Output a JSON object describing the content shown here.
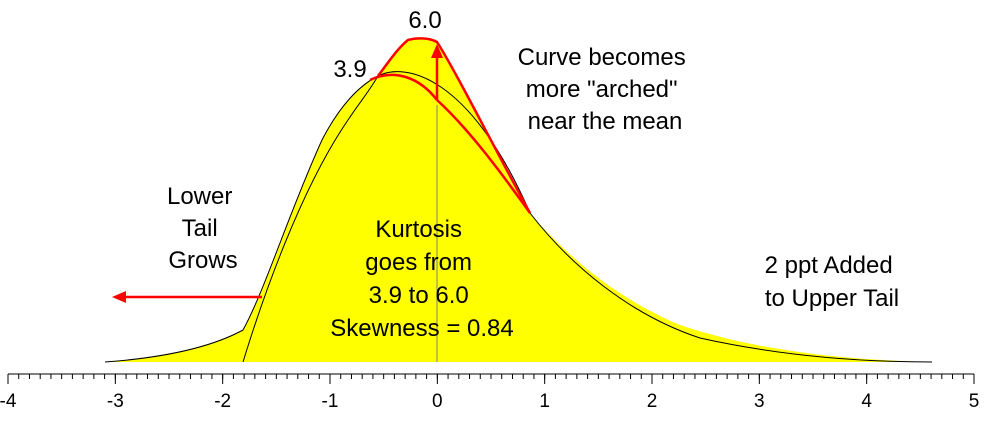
{
  "peak_labels": {
    "old": "3.9",
    "new": "6.0"
  },
  "annotations": {
    "arched": [
      "Curve becomes",
      "more \"arched\"",
      "near the mean"
    ],
    "lower_tail": [
      "Lower",
      "Tail",
      "Grows"
    ],
    "kurtosis": [
      "Kurtosis",
      "goes from",
      "3.9 to 6.0",
      "Skewness = 0.84"
    ],
    "upper_tail": [
      "2 ppt Added",
      "to Upper Tail"
    ]
  },
  "axis": {
    "min": -4,
    "max": 5,
    "ticks": [
      "-4",
      "-3",
      "-2",
      "-1",
      "0",
      "1",
      "2",
      "3",
      "4",
      "5"
    ]
  },
  "colors": {
    "fill": "#ffff00",
    "highlight": "#ff0000",
    "outline": "#000000"
  }
}
